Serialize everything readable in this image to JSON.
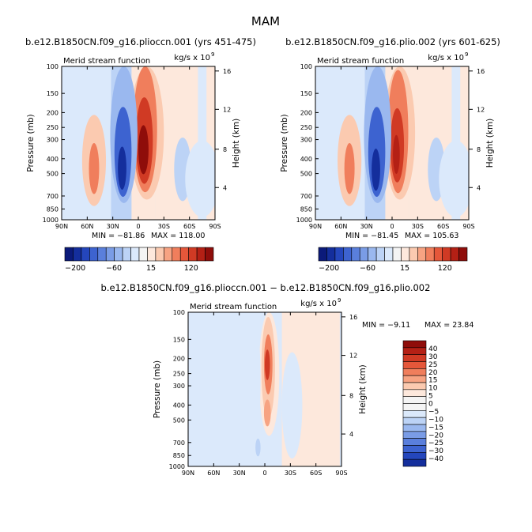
{
  "page": {
    "suptitle": "MAM",
    "diff_title": "b.e12.B1850CN.f09_g16.plioccn.001 − b.e12.B1850CN.f09_g16.plio.002"
  },
  "colors": {
    "pos": [
      "#fde8dc",
      "#fbcab0",
      "#f7a382",
      "#f07e5c",
      "#e5573a",
      "#d03a24",
      "#b42015",
      "#8f0d0a"
    ],
    "neg": [
      "#dbe9fb",
      "#bcd3f6",
      "#9ab8ef",
      "#7a9ce6",
      "#5a7fdc",
      "#3d63d0",
      "#2446bc",
      "#142e9c",
      "#0b1a7a"
    ],
    "zero": "#f4f4f4"
  },
  "chart_data": [
    {
      "type": "heatmap",
      "panel": "top-left",
      "title": "b.e12.B1850CN.f09_g16.plioccn.001 (yrs 451-475)",
      "subtitle_left": "Merid stream function",
      "subtitle_right": "kg/s x 10",
      "subtitle_exp": "9",
      "ylabel": "Pressure (mb)",
      "ylabel_right": "Height (km)",
      "xticks": [
        "90N",
        "60N",
        "30N",
        "0",
        "30S",
        "60S",
        "90S"
      ],
      "yticks": [
        "100",
        "150",
        "200",
        "250",
        "300",
        "400",
        "500",
        "700",
        "850",
        "1000"
      ],
      "yticks_right": [
        "16",
        "12",
        "8",
        "4"
      ],
      "ylim": [
        1000,
        100
      ],
      "min_label": "MIN = −81.86",
      "max_label": "MAX = 118.00",
      "cells": [
        {
          "lat": -10,
          "p": 350,
          "wx": 20,
          "wp": 700,
          "lvl": 2
        },
        {
          "lat": -8,
          "p": 350,
          "wx": 14,
          "wp": 560,
          "lvl": 4
        },
        {
          "lat": -7,
          "p": 350,
          "wx": 10,
          "wp": 420,
          "lvl": 6
        },
        {
          "lat": -6,
          "p": 360,
          "wx": 6,
          "wp": 260,
          "lvl": 8
        },
        {
          "lat": 17,
          "p": 400,
          "wx": 16,
          "wp": 680,
          "lvl": -3
        },
        {
          "lat": 18,
          "p": 420,
          "wx": 10,
          "wp": 520,
          "lvl": -6
        },
        {
          "lat": 19,
          "p": 470,
          "wx": 5,
          "wp": 300,
          "lvl": -8
        },
        {
          "lat": 52,
          "p": 480,
          "wx": 14,
          "wp": 600,
          "lvl": 2
        },
        {
          "lat": 52,
          "p": 480,
          "wx": 6,
          "wp": 360,
          "lvl": 4
        },
        {
          "lat": -52,
          "p": 500,
          "wx": 10,
          "wp": 460,
          "lvl": -2
        },
        {
          "lat": -75,
          "p": 600,
          "wx": 20,
          "wp": 650,
          "lvl": -1
        }
      ]
    },
    {
      "type": "heatmap",
      "panel": "top-right",
      "title": "b.e12.B1850CN.f09_g16.plio.002 (yrs 601-625)",
      "subtitle_left": "Merid stream function",
      "subtitle_right": "kg/s x 10",
      "subtitle_exp": "9",
      "ylabel": "Pressure (mb)",
      "ylabel_right": "Height (km)",
      "xticks": [
        "90N",
        "60N",
        "30N",
        "0",
        "30S",
        "60S",
        "90S"
      ],
      "yticks": [
        "100",
        "150",
        "200",
        "250",
        "300",
        "400",
        "500",
        "700",
        "850",
        "1000"
      ],
      "yticks_right": [
        "16",
        "12",
        "8",
        "4"
      ],
      "ylim": [
        1000,
        100
      ],
      "min_label": "MIN = −81.45",
      "max_label": "MAX = 105.63",
      "cells": [
        {
          "lat": -9,
          "p": 350,
          "wx": 18,
          "wp": 700,
          "lvl": 2
        },
        {
          "lat": -7,
          "p": 360,
          "wx": 12,
          "wp": 560,
          "lvl": 4
        },
        {
          "lat": -6,
          "p": 360,
          "wx": 8,
          "wp": 380,
          "lvl": 6
        },
        {
          "lat": -5,
          "p": 380,
          "wx": 4,
          "wp": 220,
          "lvl": 7
        },
        {
          "lat": 17,
          "p": 400,
          "wx": 16,
          "wp": 680,
          "lvl": -3
        },
        {
          "lat": 18,
          "p": 420,
          "wx": 10,
          "wp": 520,
          "lvl": -6
        },
        {
          "lat": 19,
          "p": 480,
          "wx": 5,
          "wp": 300,
          "lvl": -8
        },
        {
          "lat": 50,
          "p": 480,
          "wx": 14,
          "wp": 600,
          "lvl": 2
        },
        {
          "lat": 50,
          "p": 480,
          "wx": 6,
          "wp": 360,
          "lvl": 4
        },
        {
          "lat": -52,
          "p": 500,
          "wx": 10,
          "wp": 460,
          "lvl": -2
        },
        {
          "lat": -75,
          "p": 600,
          "wx": 20,
          "wp": 650,
          "lvl": -1
        }
      ]
    },
    {
      "type": "heatmap",
      "panel": "bottom",
      "subtitle_left": "Merid stream function",
      "subtitle_right": "kg/s x 10",
      "subtitle_exp": "9",
      "ylabel": "Pressure (mb)",
      "ylabel_right": "Height (km)",
      "xticks": [
        "90N",
        "60N",
        "30N",
        "0",
        "30S",
        "60S",
        "90S"
      ],
      "yticks": [
        "100",
        "150",
        "200",
        "250",
        "300",
        "400",
        "500",
        "700",
        "850",
        "1000"
      ],
      "yticks_right": [
        "16",
        "12",
        "8",
        "4"
      ],
      "ylim": [
        1000,
        100
      ],
      "min_label": "MIN =   −9.11",
      "max_label": "MAX =  23.84",
      "colorbar_levels": [
        "40",
        "30",
        "25",
        "20",
        "15",
        "10",
        "5",
        "0",
        "−5",
        "−10",
        "−15",
        "−20",
        "−25",
        "−30",
        "−40"
      ],
      "cells": [
        {
          "lat": -5,
          "p": 300,
          "wx": 12,
          "wp": 600,
          "lvl": 1
        },
        {
          "lat": -4,
          "p": 280,
          "wx": 8,
          "wp": 380,
          "lvl": 2
        },
        {
          "lat": -4,
          "p": 230,
          "wx": 5,
          "wp": 200,
          "lvl": 4
        },
        {
          "lat": -3,
          "p": 220,
          "wx": 3,
          "wp": 100,
          "lvl": 6
        },
        {
          "lat": -3,
          "p": 450,
          "wx": 4,
          "wp": 180,
          "lvl": 3
        },
        {
          "lat": 10,
          "p": 350,
          "wx": 5,
          "wp": 500,
          "lvl": -1
        },
        {
          "lat": 8,
          "p": 750,
          "wx": 3,
          "wp": 200,
          "lvl": -2
        },
        {
          "lat": -32,
          "p": 500,
          "wx": 12,
          "wp": 700,
          "lvl": -1
        }
      ]
    }
  ],
  "colorbar_top": {
    "ticks": [
      "−200",
      "−60",
      "15",
      "120"
    ]
  }
}
